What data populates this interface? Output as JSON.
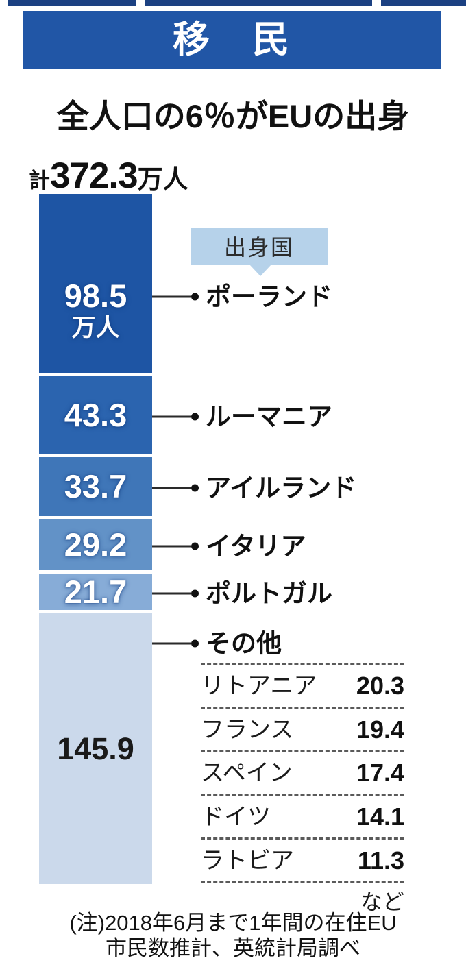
{
  "header": {
    "title": "移　民",
    "bg_color": "#2156a6"
  },
  "subtitle": "全人口の6％がEUの出身",
  "total": {
    "prefix": "計",
    "value": "372.3",
    "unit": "万人"
  },
  "chart_data": {
    "type": "bar",
    "variant": "vertical-stacked-single-bar",
    "title": "移民",
    "subtitle": "全人口の6％がEUの出身",
    "total_label": "計372.3万人",
    "total": 372.3,
    "unit": "万人",
    "callout": "出身国",
    "segments": [
      {
        "label": "ポーランド",
        "value": 98.5,
        "display": "98.5",
        "unit_in_bar": "万人",
        "color": "#1e55a4",
        "dark_text": false
      },
      {
        "label": "ルーマニア",
        "value": 43.3,
        "display": "43.3",
        "color": "#2b64af",
        "dark_text": false
      },
      {
        "label": "アイルランド",
        "value": 33.7,
        "display": "33.7",
        "color": "#3f76b8",
        "dark_text": false
      },
      {
        "label": "イタリア",
        "value": 29.2,
        "display": "29.2",
        "color": "#6292c7",
        "dark_text": false
      },
      {
        "label": "ポルトガル",
        "value": 21.7,
        "display": "21.7",
        "color": "#87acd7",
        "dark_text": false
      },
      {
        "label": "その他",
        "value": 145.9,
        "display": "145.9",
        "color": "#cbd9eb",
        "dark_text": true
      }
    ],
    "others_breakdown": [
      {
        "label": "リトアニア",
        "value": "20.3"
      },
      {
        "label": "フランス",
        "value": "19.4"
      },
      {
        "label": "スペイン",
        "value": "17.4"
      },
      {
        "label": "ドイツ",
        "value": "14.1"
      },
      {
        "label": "ラトビア",
        "value": "11.3"
      }
    ],
    "others_suffix": "など"
  },
  "note": {
    "line1": "(注)2018年6月まで1年間の在住EU",
    "line2": "市民数推計、英統計局調べ"
  }
}
